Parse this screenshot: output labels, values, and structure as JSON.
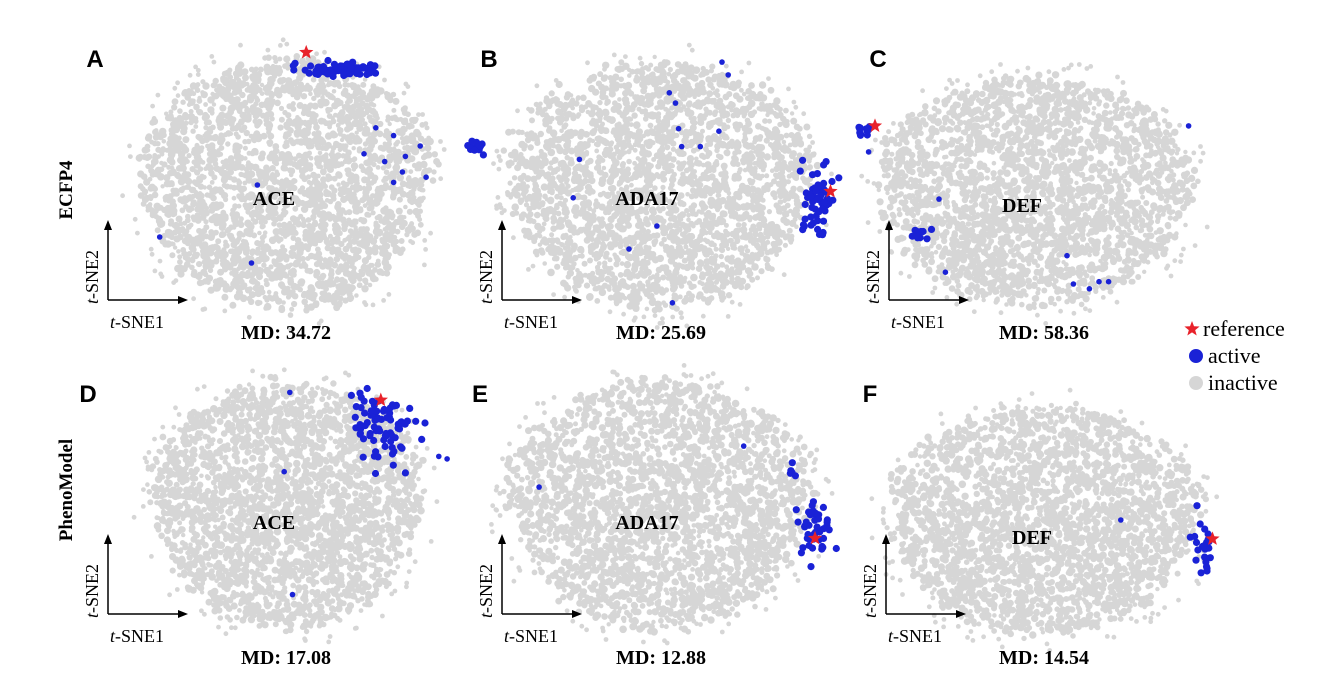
{
  "figure": {
    "rows": [
      {
        "label": "ECFP4",
        "panels": [
          "A",
          "B",
          "C"
        ]
      },
      {
        "label": "PhenoModel",
        "panels": [
          "D",
          "E",
          "F"
        ]
      }
    ],
    "axis_x_label_italic": "t",
    "axis_x_label_rest": "-SNE1",
    "axis_y_label_italic": "t",
    "axis_y_label_rest": "-SNE2",
    "legend": {
      "reference": "reference",
      "active": "active",
      "inactive": "inactive"
    },
    "colors": {
      "reference": "#e8222a",
      "active": "#1a22d6",
      "inactive": "#d6d6d6"
    }
  },
  "chart_data": [
    {
      "type": "scatter",
      "panel": "A",
      "row": "ECFP4",
      "target": "ACE",
      "md": "MD: 34.72",
      "xlabel": "t-SNE1",
      "ylabel": "t-SNE2",
      "inactive_cloud": {
        "center": [
          0,
          0
        ],
        "extent": [
          [
            -1,
            1
          ],
          [
            -1,
            1
          ]
        ]
      },
      "reference": [
        0.13,
        1.02
      ],
      "active_clusters": [
        {
          "center": [
            0.36,
            0.88
          ],
          "spread": [
            0.26,
            0.05
          ],
          "count": 70
        },
        {
          "center": [
            1.28,
            0.3
          ],
          "spread": [
            0.06,
            0.05
          ],
          "count": 14
        }
      ],
      "active_points": [
        [
          0.6,
          0.44
        ],
        [
          0.72,
          0.38
        ],
        [
          0.9,
          0.3
        ],
        [
          0.8,
          0.22
        ],
        [
          0.52,
          0.24
        ],
        [
          0.66,
          0.18
        ],
        [
          0.78,
          0.1
        ],
        [
          0.72,
          0.02
        ],
        [
          0.94,
          0.06
        ],
        [
          -0.2,
          0.0
        ],
        [
          -0.86,
          -0.4
        ],
        [
          -0.24,
          -0.6
        ]
      ]
    },
    {
      "type": "scatter",
      "panel": "B",
      "row": "ECFP4",
      "target": "ADA17",
      "md": "MD: 25.69",
      "xlabel": "t-SNE1",
      "ylabel": "t-SNE2",
      "inactive_cloud": {
        "center": [
          0,
          0
        ],
        "extent": [
          [
            -1,
            1
          ],
          [
            -1,
            1
          ]
        ]
      },
      "reference": [
        1.1,
        -0.05
      ],
      "active_clusters": [
        {
          "center": [
            1.02,
            -0.15
          ],
          "spread": [
            0.09,
            0.26
          ],
          "count": 60
        }
      ],
      "active_points": [
        [
          0.4,
          0.96
        ],
        [
          0.44,
          0.86
        ],
        [
          0.06,
          0.72
        ],
        [
          0.1,
          0.64
        ],
        [
          0.12,
          0.44
        ],
        [
          0.38,
          0.42
        ],
        [
          0.14,
          0.3
        ],
        [
          0.26,
          0.3
        ],
        [
          -0.52,
          0.2
        ],
        [
          -0.56,
          -0.1
        ],
        [
          -0.02,
          -0.32
        ],
        [
          -0.2,
          -0.5
        ],
        [
          0.08,
          -0.92
        ]
      ]
    },
    {
      "type": "scatter",
      "panel": "C",
      "row": "ECFP4",
      "target": "DEF",
      "md": "MD: 58.36",
      "xlabel": "t-SNE1",
      "ylabel": "t-SNE2",
      "inactive_cloud": {
        "center": [
          0,
          0
        ],
        "extent": [
          [
            -1,
            1
          ],
          [
            -1,
            1
          ]
        ]
      },
      "reference": [
        -1.0,
        0.56
      ],
      "active_clusters": [
        {
          "center": [
            -1.06,
            0.52
          ],
          "spread": [
            0.06,
            0.04
          ],
          "count": 12
        },
        {
          "center": [
            -0.72,
            -0.35
          ],
          "spread": [
            0.07,
            0.05
          ],
          "count": 12
        }
      ],
      "active_points": [
        [
          -1.04,
          0.34
        ],
        [
          -0.6,
          -0.06
        ],
        [
          -0.56,
          -0.68
        ],
        [
          0.2,
          -0.54
        ],
        [
          0.24,
          -0.78
        ],
        [
          0.34,
          -0.82
        ],
        [
          0.4,
          -0.76
        ],
        [
          0.46,
          -0.76
        ],
        [
          0.96,
          0.56
        ]
      ]
    },
    {
      "type": "scatter",
      "panel": "D",
      "row": "PhenoModel",
      "target": "ACE",
      "md": "MD: 17.08",
      "xlabel": "t-SNE1",
      "ylabel": "t-SNE2",
      "inactive_cloud": {
        "center": [
          0,
          0
        ],
        "extent": [
          [
            -1,
            1
          ],
          [
            -1,
            1
          ]
        ]
      },
      "reference": [
        0.68,
        0.82
      ],
      "active_clusters": [
        {
          "center": [
            0.7,
            0.62
          ],
          "spread": [
            0.22,
            0.26
          ],
          "count": 80
        }
      ],
      "active_points": [
        [
          0.02,
          0.88
        ],
        [
          -0.02,
          0.26
        ],
        [
          1.1,
          0.38
        ],
        [
          1.16,
          0.36
        ],
        [
          0.04,
          -0.7
        ]
      ]
    },
    {
      "type": "scatter",
      "panel": "E",
      "row": "PhenoModel",
      "target": "ADA17",
      "md": "MD: 12.88",
      "xlabel": "t-SNE1",
      "ylabel": "t-SNE2",
      "inactive_cloud": {
        "center": [
          0,
          0
        ],
        "extent": [
          [
            -1,
            1
          ],
          [
            -1,
            1
          ]
        ]
      },
      "reference": [
        1.0,
        -0.26
      ],
      "active_clusters": [
        {
          "center": [
            1.0,
            -0.18
          ],
          "spread": [
            0.1,
            0.16
          ],
          "count": 45
        },
        {
          "center": [
            0.84,
            0.26
          ],
          "spread": [
            0.03,
            0.04
          ],
          "count": 6
        }
      ],
      "active_points": [
        [
          0.54,
          0.46
        ],
        [
          -0.78,
          0.14
        ]
      ]
    },
    {
      "type": "scatter",
      "panel": "F",
      "row": "PhenoModel",
      "target": "DEF",
      "md": "MD: 14.54",
      "xlabel": "t-SNE1",
      "ylabel": "t-SNE2",
      "inactive_cloud": {
        "center": [
          0,
          0
        ],
        "extent": [
          [
            -1,
            1
          ],
          [
            -1,
            1
          ]
        ]
      },
      "reference": [
        1.06,
        -0.16
      ],
      "active_clusters": [
        {
          "center": [
            1.0,
            -0.22
          ],
          "spread": [
            0.05,
            0.2
          ],
          "count": 24
        }
      ],
      "active_points": [
        [
          0.48,
          0.0
        ]
      ]
    }
  ]
}
